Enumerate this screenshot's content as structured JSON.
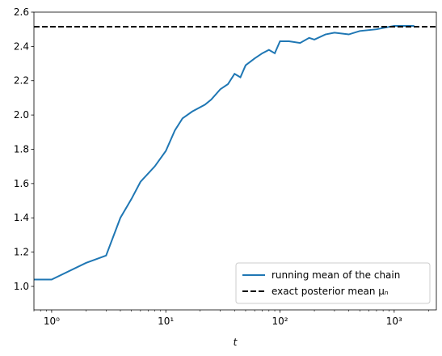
{
  "chart_data": {
    "type": "line",
    "xlabel": "t",
    "xscale": "log",
    "xlim": [
      0.7,
      2340
    ],
    "ylim": [
      0.863,
      2.6
    ],
    "xticks": [
      {
        "value": 1,
        "label": "10⁰"
      },
      {
        "value": 10,
        "label": "10¹"
      },
      {
        "value": 100,
        "label": "10²"
      },
      {
        "value": 1000,
        "label": "10³"
      }
    ],
    "yticks": [
      {
        "value": 1.0,
        "label": "1.0"
      },
      {
        "value": 1.2,
        "label": "1.2"
      },
      {
        "value": 1.4,
        "label": "1.4"
      },
      {
        "value": 1.6,
        "label": "1.6"
      },
      {
        "value": 1.8,
        "label": "1.8"
      },
      {
        "value": 2.0,
        "label": "2.0"
      },
      {
        "value": 2.2,
        "label": "2.2"
      },
      {
        "value": 2.4,
        "label": "2.4"
      },
      {
        "value": 2.6,
        "label": "2.6"
      }
    ],
    "legend": "lower right",
    "series": [
      {
        "name": "running mean of the chain",
        "color": "#1f77b4",
        "x": [
          0.7,
          1,
          2,
          3,
          4,
          5,
          6,
          8,
          10,
          12,
          14,
          17,
          22,
          25,
          30,
          35,
          40,
          45,
          50,
          60,
          70,
          80,
          90,
          100,
          120,
          150,
          180,
          200,
          250,
          300,
          400,
          500,
          700,
          1000,
          1500
        ],
        "values": [
          1.04,
          1.04,
          1.137,
          1.18,
          1.4,
          1.51,
          1.61,
          1.7,
          1.79,
          1.91,
          1.98,
          2.02,
          2.06,
          2.09,
          2.15,
          2.18,
          2.24,
          2.22,
          2.29,
          2.33,
          2.36,
          2.38,
          2.36,
          2.43,
          2.43,
          2.42,
          2.45,
          2.44,
          2.47,
          2.48,
          2.47,
          2.49,
          2.5,
          2.52,
          2.52
        ]
      }
    ],
    "hlines": [
      {
        "name": "exact posterior mean μₙ",
        "color": "#000000",
        "value": 2.515
      }
    ]
  }
}
